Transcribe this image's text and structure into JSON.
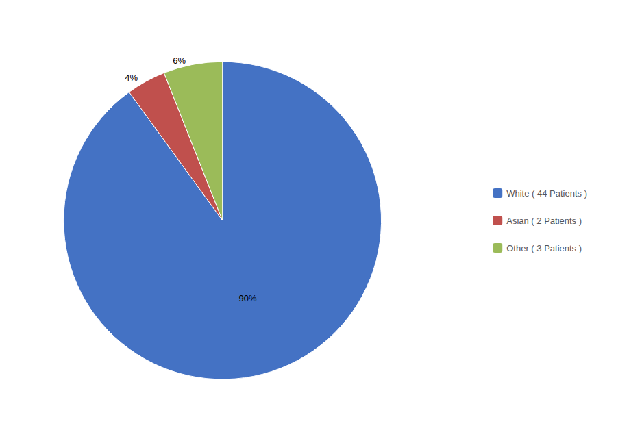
{
  "chart_data": {
    "type": "pie",
    "categories": [
      "White ( 44 Patients )",
      "Asian ( 2 Patients )",
      "Other ( 3 Patients )"
    ],
    "values": [
      90,
      4,
      6
    ],
    "value_labels": [
      "90%",
      "4%",
      "6%"
    ],
    "colors": [
      "#4472C4",
      "#C0504D",
      "#9BBB59"
    ],
    "data_labels": true,
    "legend": "right"
  }
}
